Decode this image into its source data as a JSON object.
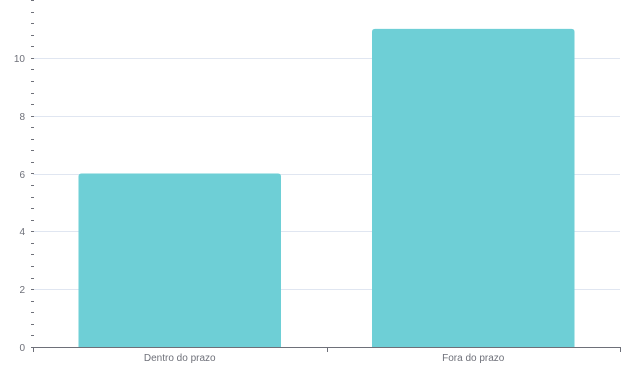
{
  "chart_data": {
    "type": "bar",
    "categories": [
      "Dentro do prazo",
      "Fora do prazo"
    ],
    "values": [
      6,
      11
    ],
    "title": "",
    "xlabel": "",
    "ylabel": "",
    "ylim": [
      0,
      12
    ],
    "y_ticks": [
      0,
      2,
      4,
      6,
      8,
      10
    ],
    "grid": true,
    "legend": "none",
    "colors": {
      "bar": "#6ecfd6",
      "grid": "#e0e6f1",
      "axis": "#6e7079",
      "tick_text": "#6e7079"
    }
  }
}
